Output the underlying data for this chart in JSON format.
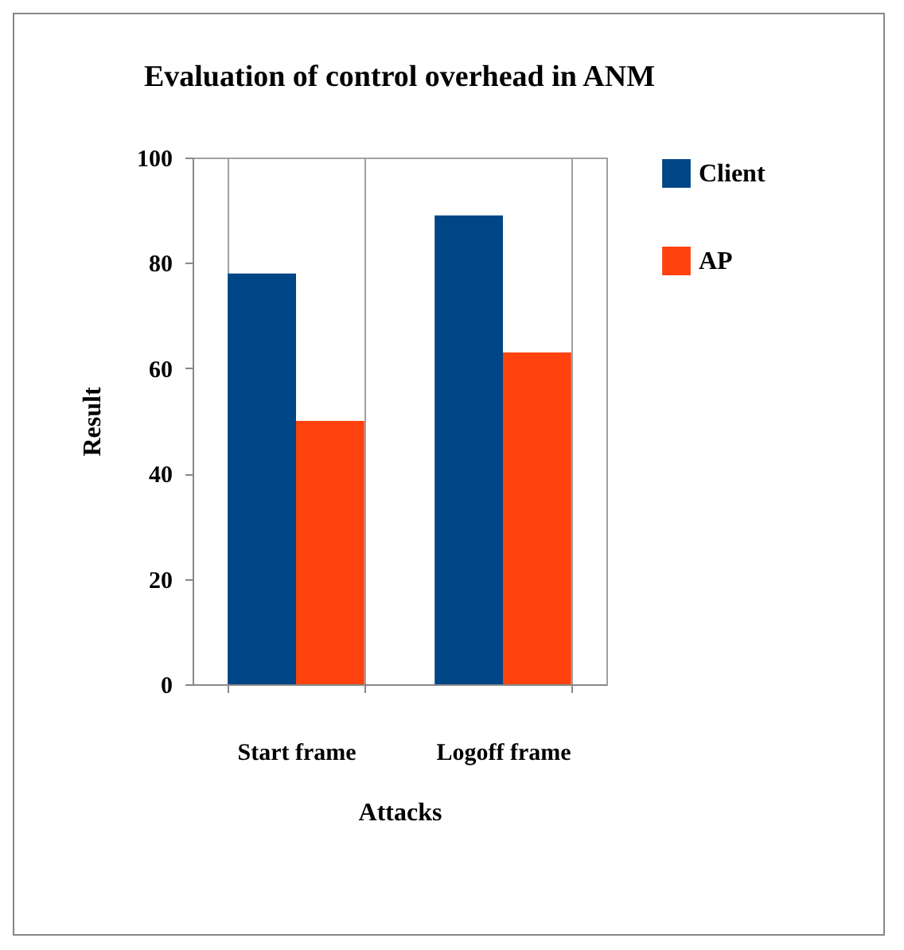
{
  "chart_data": {
    "type": "bar",
    "title": "Evaluation of control overhead in ANM",
    "xlabel": "Attacks",
    "ylabel": "Result",
    "categories": [
      "Start frame",
      "Logoff frame"
    ],
    "series": [
      {
        "name": "Client",
        "color": "#004586",
        "values": [
          78,
          89
        ]
      },
      {
        "name": "AP",
        "color": "#ff420e",
        "values": [
          50,
          63
        ]
      }
    ],
    "ylim": [
      0,
      100
    ],
    "yticks": [
      0,
      20,
      40,
      60,
      80,
      100
    ],
    "grid": "x",
    "legend": "right"
  }
}
